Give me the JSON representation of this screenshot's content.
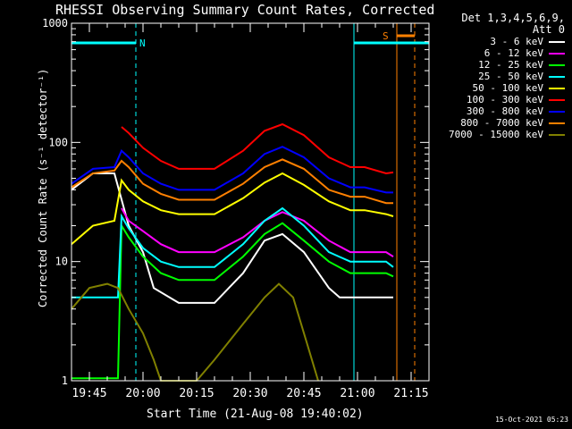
{
  "chart_data": {
    "type": "line",
    "title": "RHESSI Observing Summary Count Rates, Corrected",
    "xlabel": "Start Time (21-Aug-08 19:40:02)",
    "ylabel": "Corrected Count Rate (s⁻¹ detector⁻¹)",
    "y_scale": "log",
    "ylim": [
      1,
      1000
    ],
    "y_ticks": [
      "1",
      "10",
      "100",
      "1000"
    ],
    "xlim": [
      "19:40",
      "21:20"
    ],
    "x_ticks": [
      "19:45",
      "20:00",
      "20:15",
      "20:30",
      "20:45",
      "21:00",
      "21:15"
    ],
    "legend_title": [
      "Det 1,3,4,5,6,9,",
      "Att 0"
    ],
    "legend_position": "top-right",
    "series": [
      {
        "name": "3 - 6 keV",
        "color": "#ffffff",
        "x": [
          "19:40",
          "19:46",
          "19:52",
          "19:56",
          "20:00",
          "20:03",
          "20:10",
          "20:20",
          "20:28",
          "20:34",
          "20:39",
          "20:45",
          "20:52",
          "20:55",
          "21:02",
          "21:08",
          "21:10"
        ],
        "y": [
          40,
          55,
          55,
          20,
          12,
          6,
          4.5,
          4.5,
          8,
          15,
          17,
          12,
          6,
          5,
          5,
          5,
          5
        ]
      },
      {
        "name": "6 - 12 keV",
        "color": "#ff00ff",
        "x": [
          "19:54",
          "19:56",
          "20:00",
          "20:05",
          "20:10",
          "20:20",
          "20:28",
          "20:34",
          "20:39",
          "20:45",
          "20:52",
          "20:58",
          "21:02",
          "21:08",
          "21:10"
        ],
        "y": [
          28,
          22,
          18,
          14,
          12,
          12,
          16,
          22,
          26,
          22,
          15,
          12,
          12,
          12,
          11
        ]
      },
      {
        "name": "12 - 25 keV",
        "color": "#00ff00",
        "x": [
          "19:40",
          "19:53",
          "19:54",
          "19:56",
          "20:00",
          "20:05",
          "20:10",
          "20:20",
          "20:28",
          "20:34",
          "20:39",
          "20:45",
          "20:52",
          "20:58",
          "21:02",
          "21:08",
          "21:10"
        ],
        "y": [
          1.05,
          1.05,
          20,
          16,
          11,
          8,
          7,
          7,
          11,
          17,
          21,
          15,
          10,
          8,
          8,
          8,
          7.5
        ]
      },
      {
        "name": "25 - 50 keV",
        "color": "#00ffff",
        "x": [
          "19:40",
          "19:53",
          "19:54",
          "19:56",
          "20:00",
          "20:05",
          "20:10",
          "20:20",
          "20:28",
          "20:34",
          "20:39",
          "20:45",
          "20:52",
          "20:58",
          "21:02",
          "21:08",
          "21:10"
        ],
        "y": [
          5,
          5,
          24,
          19,
          13,
          10,
          9,
          9,
          14,
          22,
          28,
          20,
          12,
          10,
          10,
          10,
          9
        ]
      },
      {
        "name": "50 - 100 keV",
        "color": "#ffff00",
        "x": [
          "19:40",
          "19:46",
          "19:52",
          "19:54",
          "19:56",
          "20:00",
          "20:05",
          "20:10",
          "20:20",
          "20:28",
          "20:34",
          "20:39",
          "20:45",
          "20:52",
          "20:58",
          "21:02",
          "21:08",
          "21:10"
        ],
        "y": [
          14,
          20,
          22,
          48,
          40,
          32,
          27,
          25,
          25,
          34,
          46,
          55,
          44,
          32,
          27,
          27,
          25,
          24
        ]
      },
      {
        "name": "100 - 300 keV",
        "color": "#ff0000",
        "x": [
          "19:54",
          "19:56",
          "20:00",
          "20:05",
          "20:10",
          "20:20",
          "20:28",
          "20:34",
          "20:39",
          "20:45",
          "20:52",
          "20:58",
          "21:02",
          "21:08",
          "21:10"
        ],
        "y": [
          135,
          120,
          90,
          70,
          60,
          60,
          85,
          125,
          142,
          115,
          75,
          62,
          62,
          55,
          56
        ]
      },
      {
        "name": "300 - 800 keV",
        "color": "#0000ff",
        "x": [
          "19:40",
          "19:46",
          "19:52",
          "19:54",
          "19:56",
          "20:00",
          "20:05",
          "20:10",
          "20:20",
          "20:28",
          "20:34",
          "20:39",
          "20:45",
          "20:52",
          "20:58",
          "21:02",
          "21:08",
          "21:10"
        ],
        "y": [
          45,
          60,
          62,
          85,
          75,
          55,
          45,
          40,
          40,
          55,
          80,
          92,
          75,
          50,
          42,
          42,
          38,
          38
        ]
      },
      {
        "name": "800 - 7000 keV",
        "color": "#ff8000",
        "x": [
          "19:40",
          "19:46",
          "19:52",
          "19:54",
          "19:56",
          "20:00",
          "20:05",
          "20:10",
          "20:20",
          "20:28",
          "20:34",
          "20:39",
          "20:45",
          "20:52",
          "20:58",
          "21:02",
          "21:08",
          "21:10"
        ],
        "y": [
          42,
          55,
          58,
          70,
          62,
          45,
          37,
          33,
          33,
          45,
          62,
          72,
          60,
          40,
          35,
          35,
          31,
          31
        ]
      },
      {
        "name": "7000 - 15000 keV",
        "color": "#808000",
        "x": [
          "19:40",
          "19:45",
          "19:50",
          "19:53",
          "19:56",
          "20:00",
          "20:03",
          "20:05",
          "20:15",
          "20:20",
          "20:28",
          "20:34",
          "20:38",
          "20:42",
          "20:46",
          "20:49"
        ],
        "y": [
          4,
          6,
          6.5,
          6,
          4,
          2.5,
          1.5,
          1,
          1,
          1.5,
          3,
          5,
          6.5,
          5,
          2,
          1
        ]
      }
    ],
    "annotations": [
      {
        "text": "N",
        "color": "#00ffff",
        "type": "night-interval",
        "from": "19:40",
        "to": "19:58"
      },
      {
        "text": "S",
        "color": "#ff8000",
        "type": "saa-interval",
        "from": "21:11",
        "to": "21:16"
      },
      {
        "text": "",
        "color": "#00ffff",
        "type": "night-interval",
        "from": "20:59",
        "to": "21:20"
      }
    ]
  },
  "footer_timestamp": "15-Oct-2021 05:23"
}
